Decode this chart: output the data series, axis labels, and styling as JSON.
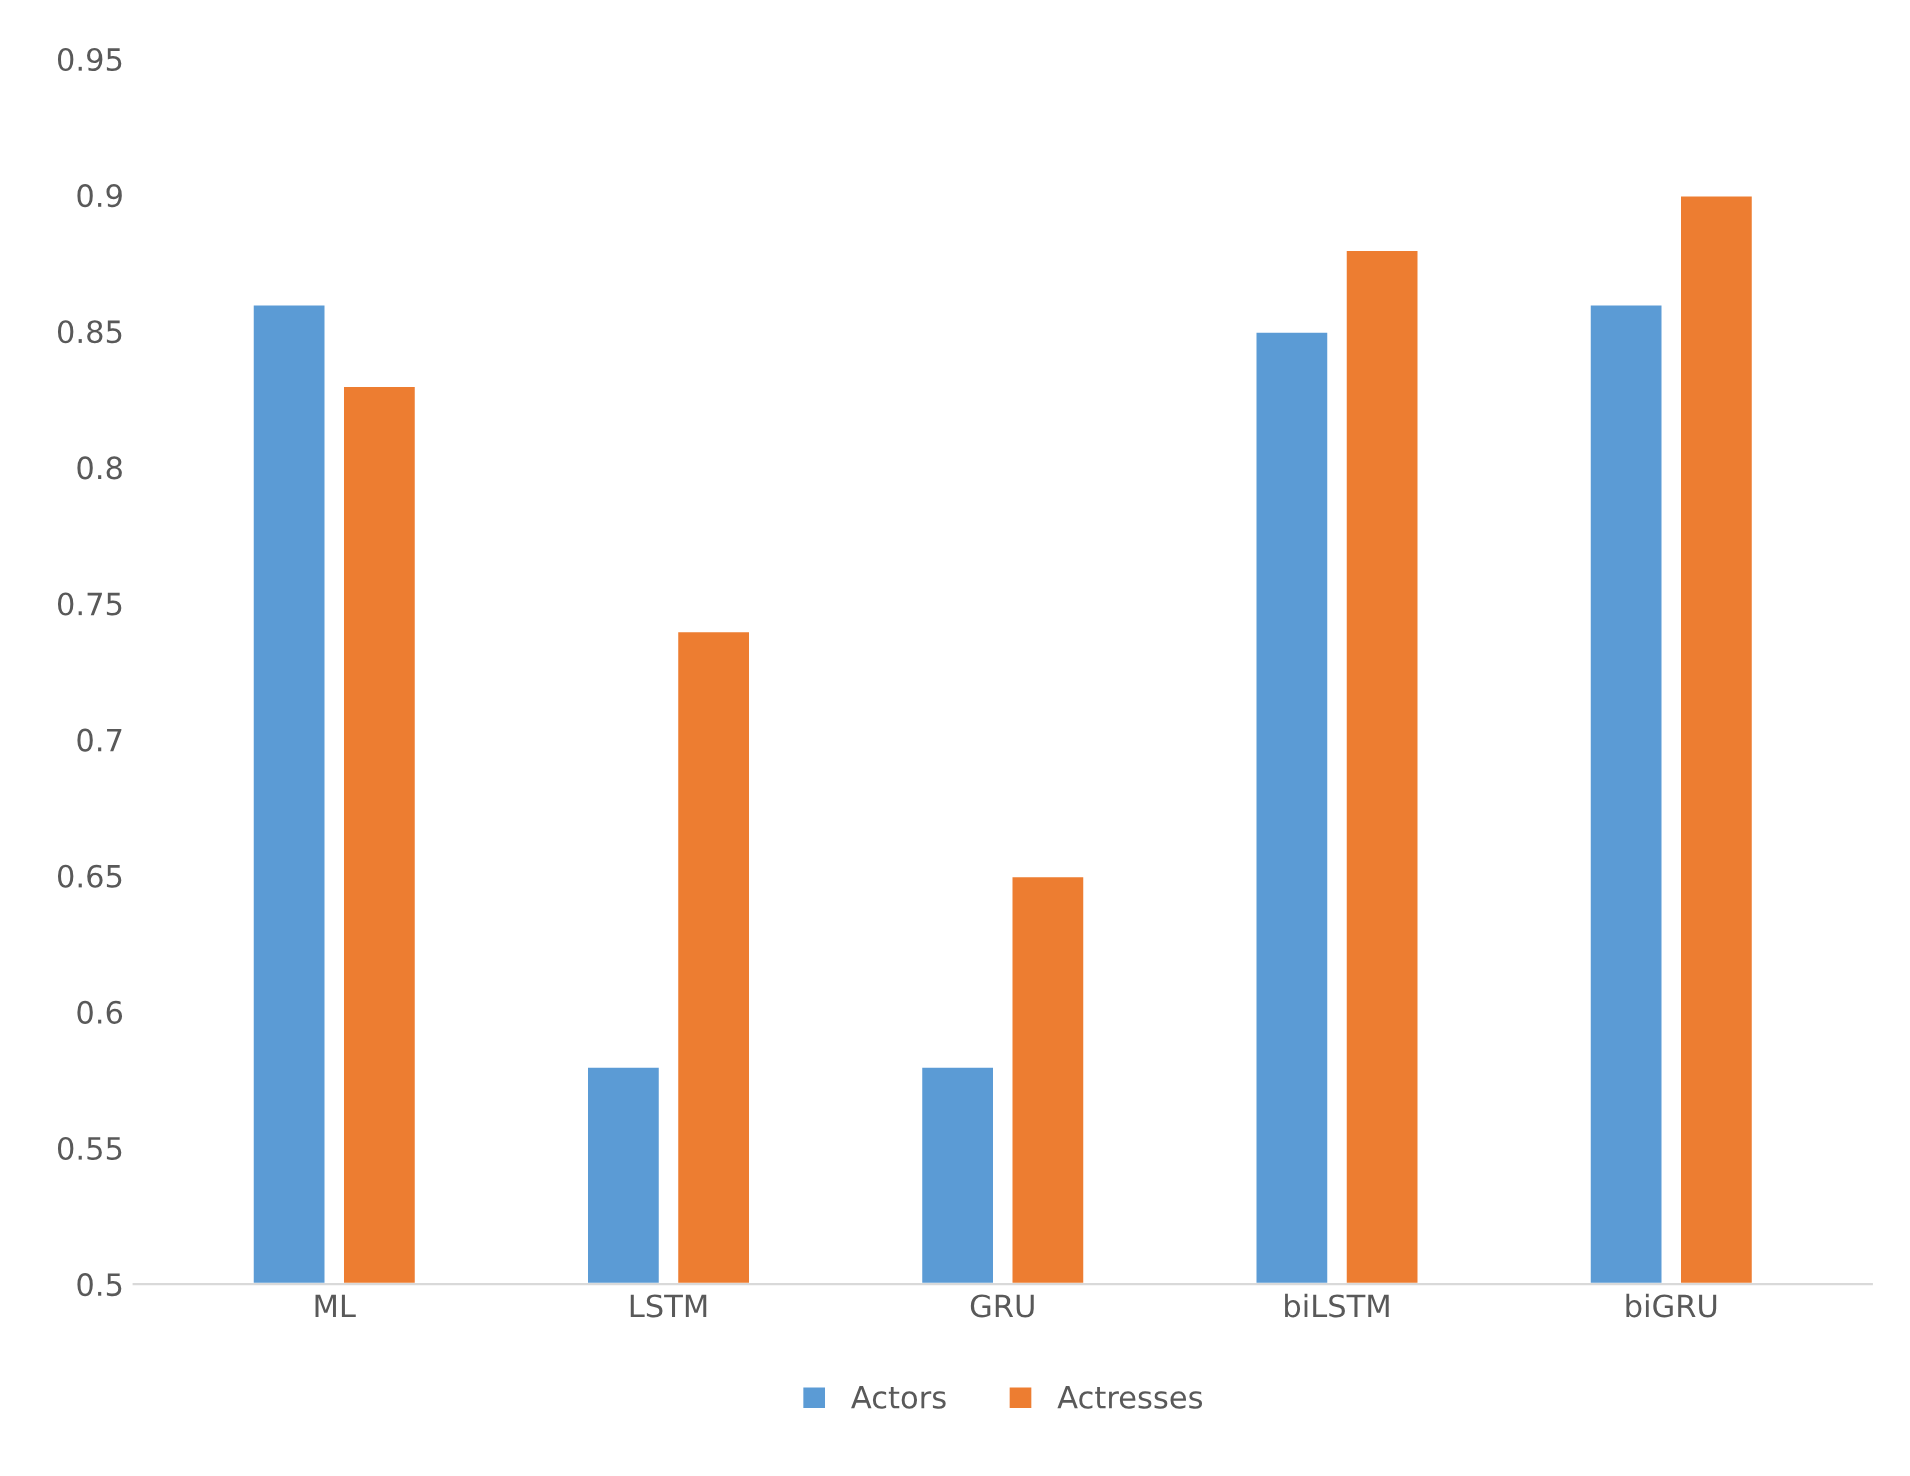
{
  "chart_data": {
    "type": "bar",
    "categories": [
      "ML",
      "LSTM",
      "GRU",
      "biLSTM",
      "biGRU"
    ],
    "series": [
      {
        "name": "Actors",
        "color": "#5b9bd5",
        "values": [
          0.86,
          0.58,
          0.58,
          0.85,
          0.86
        ]
      },
      {
        "name": "Actresses",
        "color": "#ed7d31",
        "values": [
          0.83,
          0.74,
          0.65,
          0.88,
          0.9
        ]
      }
    ],
    "ylim": [
      0.5,
      0.95
    ],
    "yticks": [
      0.5,
      0.55,
      0.6,
      0.65,
      0.7,
      0.75,
      0.8,
      0.85,
      0.9,
      0.95
    ],
    "grid": false,
    "legend": "bottom"
  }
}
